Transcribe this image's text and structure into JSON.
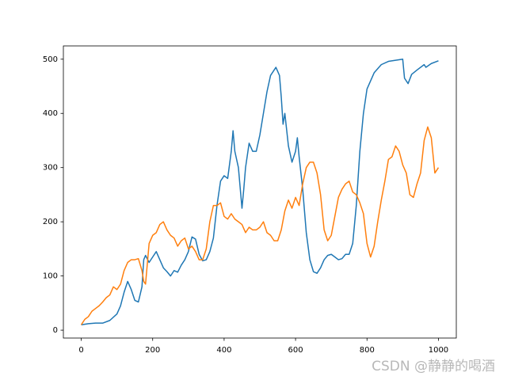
{
  "chart_data": {
    "type": "line",
    "xlim": [
      -50,
      1050
    ],
    "ylim": [
      -14.5,
      524.5
    ],
    "xticks": [
      0,
      200,
      400,
      600,
      800,
      1000
    ],
    "yticks": [
      0,
      100,
      200,
      300,
      400,
      500
    ],
    "grid": false,
    "series": [
      {
        "color": "#1f77b4",
        "x": [
          0,
          20,
          40,
          60,
          80,
          100,
          110,
          120,
          130,
          140,
          150,
          160,
          170,
          175,
          180,
          190,
          200,
          210,
          220,
          230,
          240,
          250,
          260,
          270,
          280,
          290,
          300,
          310,
          320,
          330,
          340,
          350,
          360,
          370,
          380,
          390,
          400,
          410,
          420,
          425,
          430,
          440,
          450,
          455,
          460,
          470,
          480,
          490,
          500,
          510,
          520,
          530,
          545,
          555,
          560,
          565,
          570,
          580,
          590,
          600,
          605,
          610,
          620,
          630,
          640,
          650,
          660,
          670,
          680,
          690,
          700,
          710,
          720,
          730,
          740,
          750,
          760,
          770,
          780,
          790,
          800,
          820,
          840,
          860,
          880,
          900,
          905,
          915,
          925,
          940,
          960,
          965,
          980,
          1000
        ],
        "values": [
          10,
          12,
          13,
          13,
          18,
          30,
          45,
          70,
          90,
          75,
          55,
          52,
          80,
          130,
          138,
          125,
          135,
          145,
          130,
          115,
          108,
          100,
          110,
          107,
          120,
          130,
          145,
          172,
          168,
          140,
          128,
          130,
          145,
          170,
          230,
          275,
          285,
          280,
          330,
          368,
          330,
          300,
          225,
          260,
          300,
          345,
          330,
          330,
          360,
          400,
          440,
          470,
          485,
          470,
          430,
          380,
          400,
          340,
          310,
          330,
          355,
          320,
          260,
          180,
          130,
          108,
          105,
          115,
          130,
          138,
          140,
          135,
          130,
          132,
          140,
          140,
          160,
          230,
          330,
          400,
          445,
          475,
          490,
          496,
          498,
          500,
          465,
          455,
          472,
          480,
          490,
          485,
          492,
          497
        ]
      },
      {
        "color": "#ff7f0e",
        "x": [
          0,
          10,
          20,
          30,
          40,
          50,
          60,
          70,
          80,
          90,
          100,
          110,
          120,
          130,
          140,
          150,
          160,
          170,
          175,
          180,
          190,
          200,
          210,
          220,
          230,
          240,
          250,
          260,
          270,
          280,
          290,
          300,
          310,
          320,
          330,
          340,
          350,
          360,
          370,
          380,
          390,
          400,
          410,
          420,
          430,
          440,
          450,
          460,
          470,
          480,
          490,
          500,
          510,
          520,
          530,
          540,
          550,
          560,
          570,
          580,
          590,
          600,
          610,
          620,
          630,
          640,
          650,
          660,
          670,
          680,
          690,
          700,
          710,
          720,
          730,
          740,
          750,
          760,
          770,
          780,
          790,
          800,
          810,
          820,
          830,
          840,
          850,
          860,
          870,
          880,
          890,
          900,
          910,
          920,
          930,
          940,
          950,
          960,
          970,
          980,
          990,
          1000
        ],
        "values": [
          10,
          20,
          25,
          35,
          40,
          45,
          52,
          60,
          65,
          80,
          75,
          85,
          110,
          125,
          130,
          130,
          132,
          110,
          90,
          85,
          160,
          175,
          180,
          195,
          200,
          185,
          175,
          170,
          155,
          165,
          170,
          150,
          155,
          145,
          130,
          130,
          150,
          200,
          230,
          230,
          235,
          210,
          205,
          215,
          205,
          200,
          195,
          180,
          190,
          185,
          185,
          190,
          200,
          180,
          175,
          165,
          165,
          185,
          220,
          240,
          225,
          245,
          230,
          270,
          300,
          310,
          310,
          290,
          250,
          185,
          165,
          175,
          210,
          245,
          260,
          270,
          275,
          255,
          250,
          235,
          215,
          160,
          135,
          155,
          200,
          240,
          275,
          315,
          320,
          340,
          330,
          305,
          290,
          250,
          245,
          270,
          290,
          350,
          375,
          355,
          290,
          300
        ]
      }
    ]
  },
  "watermark": "CSDN @静静的喝酒"
}
